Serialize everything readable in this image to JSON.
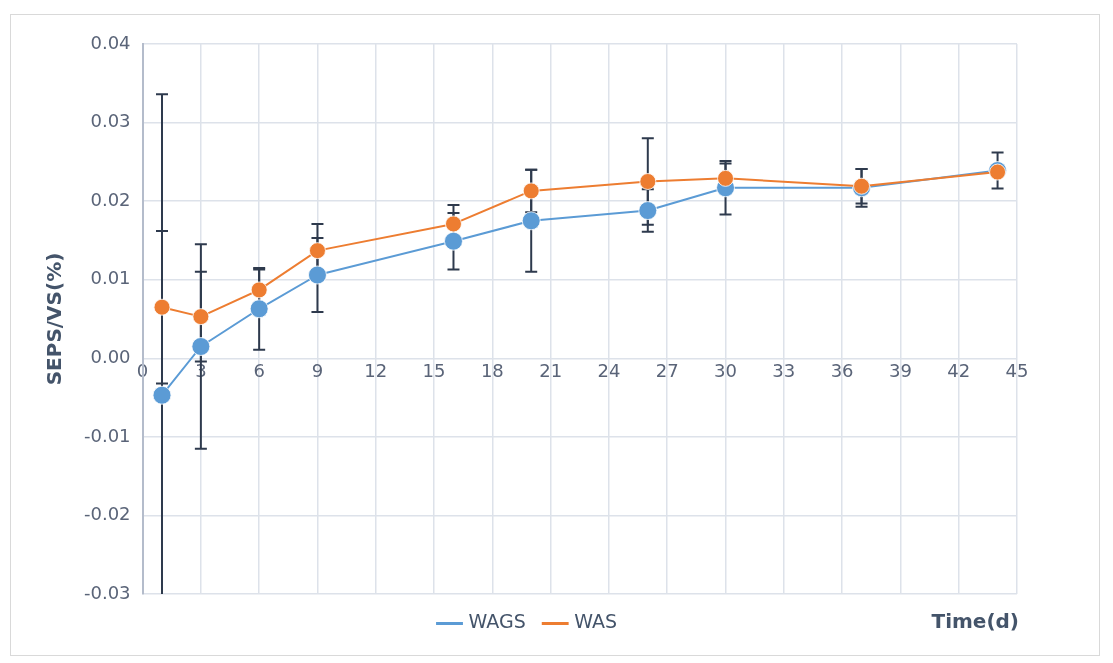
{
  "chart_data": {
    "type": "line",
    "xlabel": "Time(d)",
    "ylabel": "SEPS/VS(%)",
    "xlim": [
      0,
      45
    ],
    "xticks": [
      0,
      3,
      6,
      9,
      12,
      15,
      18,
      21,
      24,
      27,
      30,
      33,
      36,
      39,
      42,
      45
    ],
    "ylim": [
      -0.03,
      0.04
    ],
    "yticks": [
      -0.03,
      -0.02,
      -0.01,
      {
        "value": 0,
        "label": "0.00"
      },
      0.01,
      0.02,
      0.03,
      0.04
    ],
    "grid": true,
    "legend": "bottom",
    "marker": "circle",
    "line_style": "solid",
    "series": [
      {
        "name": "WAGS",
        "color": "#5b9bd5",
        "x": [
          1,
          3,
          6,
          9,
          16,
          20,
          26,
          30,
          37,
          44
        ],
        "values": [
          -0.0047,
          0.0015,
          0.0063,
          0.0106,
          0.0149,
          0.0175,
          0.0188,
          0.0217,
          0.0217,
          0.0239
        ],
        "errors": [
          0.0383,
          0.013,
          0.0052,
          0.0047,
          0.0036,
          0.0065,
          0.0027,
          0.0034,
          0.0024,
          0.0023
        ]
      },
      {
        "name": "WAS",
        "color": "#ed7d31",
        "x": [
          1,
          3,
          6,
          9,
          16,
          20,
          26,
          30,
          37,
          44
        ],
        "values": [
          0.0065,
          0.0053,
          0.0087,
          0.0137,
          0.0171,
          0.0213,
          0.0225,
          0.0229,
          0.0219,
          0.0237
        ],
        "errors": [
          0.0097,
          0.0057,
          0.0026,
          0.0034,
          0.0024,
          0.0027,
          0.0055,
          0.0019,
          0.0022,
          null
        ]
      }
    ]
  }
}
